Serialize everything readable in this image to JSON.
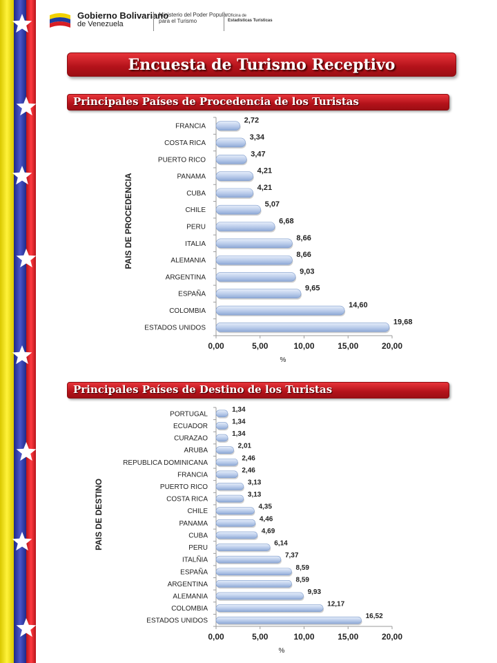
{
  "header": {
    "gob_line1": "Gobierno Bolivariano",
    "gob_line2": "de Venezuela",
    "ministerio_line1": "Ministerio del Poder Popular",
    "ministerio_line2": "para el Turismo",
    "oficina_line1": "Oficina de",
    "oficina_line2": "Estadísticas Turísticas"
  },
  "title": "Encuesta de Turismo Receptivo",
  "sections": [
    {
      "title": "Principales Países de Procedencia de los Turistas"
    },
    {
      "title": "Principales Países de Destino de los Turistas"
    }
  ],
  "colors": {
    "banner_red": "#c41a22",
    "bar_light": "#e6eefa",
    "bar_dark": "#8ea9d6",
    "stripe_yellow": "#f6e60a",
    "stripe_blue": "#2f3aa8",
    "stripe_red": "#e0262c"
  },
  "chart_data": [
    {
      "type": "bar",
      "orientation": "horizontal",
      "categories": [
        "FRANCIA",
        "COSTA RICA",
        "PUERTO  RICO",
        "PANAMA",
        "CUBA",
        "CHILE",
        "PERU",
        "ITALIA",
        "ALEMANIA",
        "ARGENTINA",
        "ESPAÑA",
        "COLOMBIA",
        "ESTADOS UNIDOS"
      ],
      "values": [
        2.72,
        3.34,
        3.47,
        4.21,
        4.21,
        5.07,
        6.68,
        8.66,
        8.66,
        9.03,
        9.65,
        14.6,
        19.68
      ],
      "value_labels": [
        "2,72",
        "3,34",
        "3,47",
        "4,21",
        "4,21",
        "5,07",
        "6,68",
        "8,66",
        "8,66",
        "9,03",
        "9,65",
        "14,60",
        "19,68"
      ],
      "xticks": [
        "0,00",
        "5,00",
        "10,00",
        "15,00",
        "20,00"
      ],
      "xlim": [
        0,
        20
      ],
      "xlabel": "%",
      "ylabel": "PAIS DE PROCEDENCIA",
      "grid": false
    },
    {
      "type": "bar",
      "orientation": "horizontal",
      "categories": [
        "PORTUGAL",
        "ECUADOR",
        "CURAZAO",
        "ARUBA",
        "REPUBLICA DOMINICANA",
        "FRANCIA",
        "PUERTO RICO",
        "COSTA RICA ",
        "CHILE",
        "PANAMA",
        "CUBA",
        "PERU",
        "ITALÑIA",
        "ESPAÑA",
        "ARGENTINA",
        "ALEMANIA",
        "COLOMBIA",
        "ESTADOS UNIDOS"
      ],
      "values": [
        1.34,
        1.34,
        1.34,
        2.01,
        2.46,
        2.46,
        3.13,
        3.13,
        4.35,
        4.46,
        4.69,
        6.14,
        7.37,
        8.59,
        8.59,
        9.93,
        12.17,
        16.52
      ],
      "value_labels": [
        "1,34",
        "1,34",
        "1,34",
        "2,01",
        "2,46",
        "2,46",
        "3,13",
        "3,13",
        "4,35",
        "4,46",
        "4,69",
        "6,14",
        "7,37",
        "8,59",
        "8,59",
        "9,93",
        "12,17",
        "16,52"
      ],
      "xticks": [
        "0,00",
        "5,00",
        "10,00",
        "15,00",
        "20,00"
      ],
      "xlim": [
        0,
        20
      ],
      "xlabel": "%",
      "ylabel": "PAIS DE DESTINO",
      "grid": false
    }
  ]
}
